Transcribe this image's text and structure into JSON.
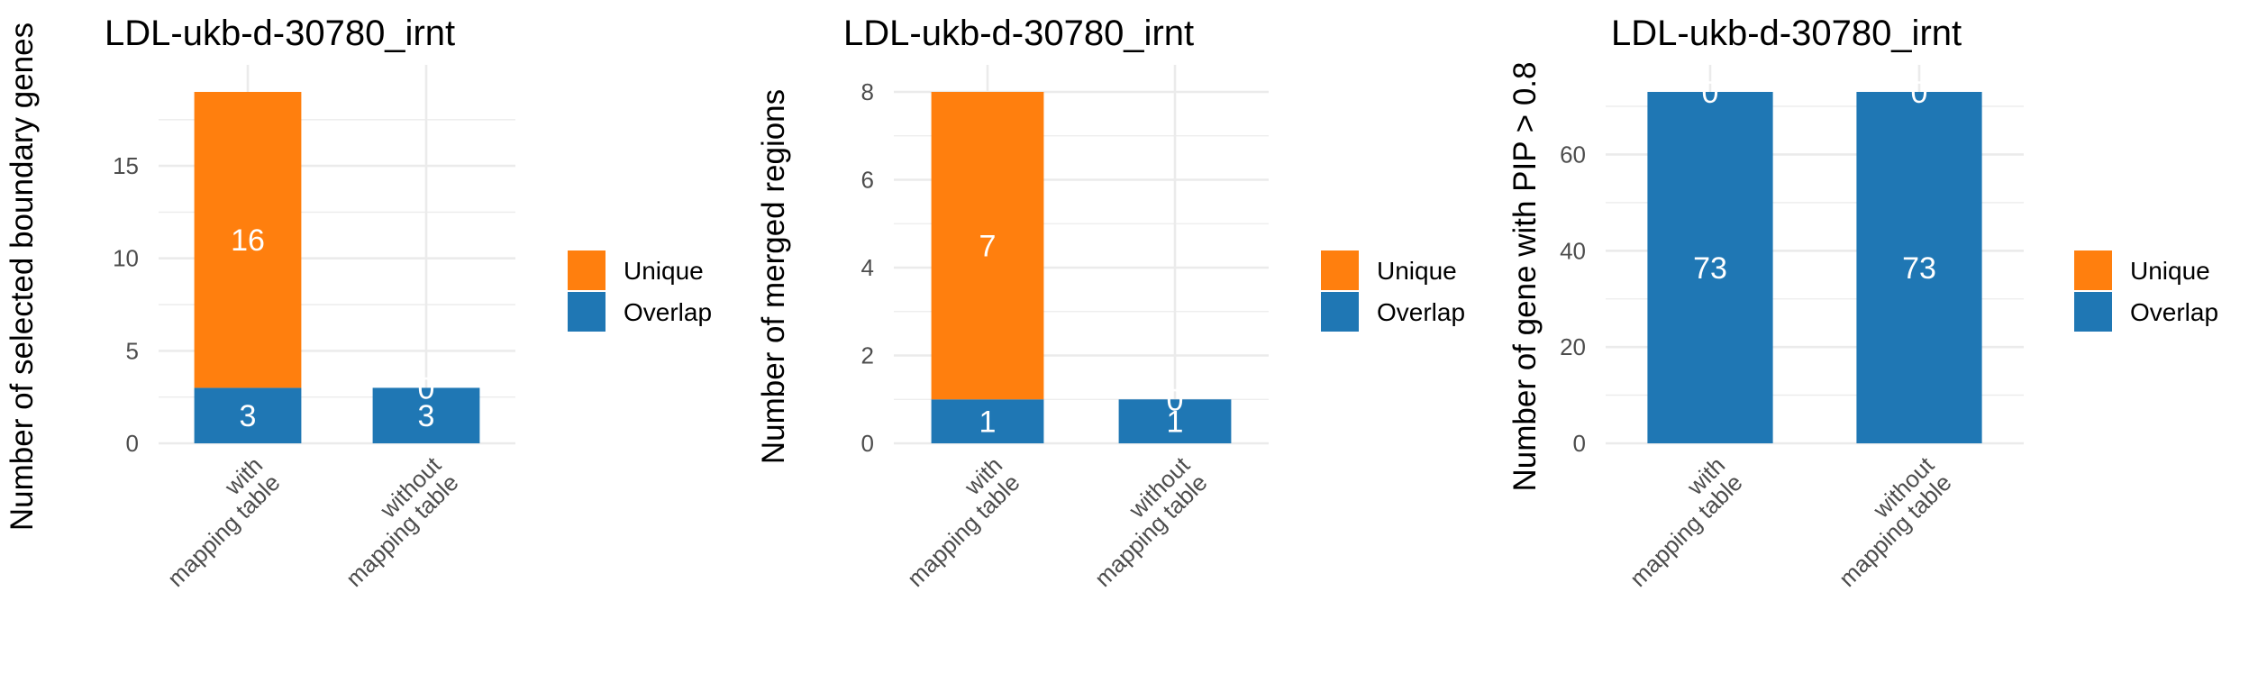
{
  "chart_data": [
    {
      "type": "bar",
      "stacked": true,
      "title": "LDL-ukb-d-30780_irnt",
      "ylabel": "Number of selected boundary genes",
      "categories": [
        [
          "with",
          "mapping table"
        ],
        [
          "without",
          "mapping table"
        ]
      ],
      "series": [
        {
          "name": "Overlap",
          "values": [
            3,
            3
          ],
          "color": "#1f77b4"
        },
        {
          "name": "Unique",
          "values": [
            16,
            0
          ],
          "color": "#ff7f0e"
        }
      ],
      "ylim": [
        0,
        19
      ],
      "yticks": [
        0,
        5,
        10,
        15
      ],
      "grid": true,
      "legend": {
        "position": "right",
        "entries": [
          "Unique",
          "Overlap"
        ]
      }
    },
    {
      "type": "bar",
      "stacked": true,
      "title": "LDL-ukb-d-30780_irnt",
      "ylabel": "Number of merged regions",
      "categories": [
        [
          "with",
          "mapping table"
        ],
        [
          "without",
          "mapping table"
        ]
      ],
      "series": [
        {
          "name": "Overlap",
          "values": [
            1,
            1
          ],
          "color": "#1f77b4"
        },
        {
          "name": "Unique",
          "values": [
            7,
            0
          ],
          "color": "#ff7f0e"
        }
      ],
      "ylim": [
        0,
        8
      ],
      "yticks": [
        0,
        2,
        4,
        6,
        8
      ],
      "grid": true,
      "legend": {
        "position": "right",
        "entries": [
          "Unique",
          "Overlap"
        ]
      }
    },
    {
      "type": "bar",
      "stacked": true,
      "title": "LDL-ukb-d-30780_irnt",
      "ylabel": "Number of gene with PIP > 0.8",
      "categories": [
        [
          "with",
          "mapping table"
        ],
        [
          "without",
          "mapping table"
        ]
      ],
      "series": [
        {
          "name": "Overlap",
          "values": [
            73,
            73
          ],
          "color": "#1f77b4"
        },
        {
          "name": "Unique",
          "values": [
            0,
            0
          ],
          "color": "#ff7f0e"
        }
      ],
      "ylim": [
        0,
        73
      ],
      "yticks": [
        0,
        20,
        40,
        60
      ],
      "grid": true,
      "legend": {
        "position": "right",
        "entries": [
          "Unique",
          "Overlap"
        ]
      }
    }
  ]
}
